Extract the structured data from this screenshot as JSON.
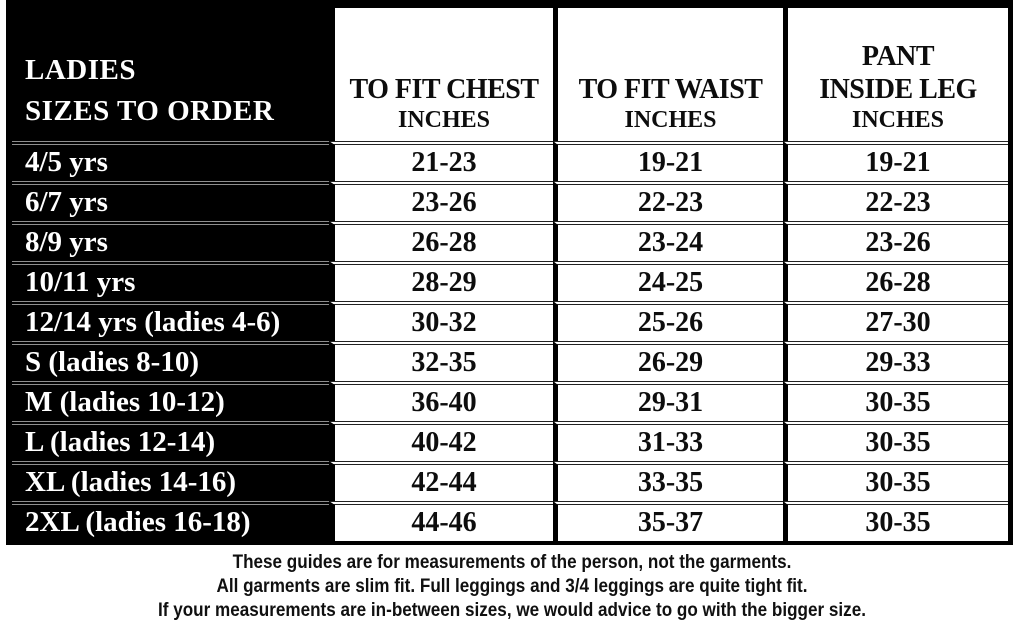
{
  "chart_data": {
    "type": "table",
    "title": "LADIES SIZES TO ORDER",
    "columns": [
      "LADIES SIZES TO ORDER",
      "TO FIT CHEST INCHES",
      "TO FIT WAIST INCHES",
      "PANT INSIDE LEG INCHES"
    ],
    "rows": [
      {
        "size": "4/5 yrs",
        "chest": "21-23",
        "waist": "19-21",
        "inside_leg": "19-21"
      },
      {
        "size": "6/7 yrs",
        "chest": "23-26",
        "waist": "22-23",
        "inside_leg": "22-23"
      },
      {
        "size": "8/9 yrs",
        "chest": "26-28",
        "waist": "23-24",
        "inside_leg": "23-26"
      },
      {
        "size": "10/11 yrs",
        "chest": "28-29",
        "waist": "24-25",
        "inside_leg": "26-28"
      },
      {
        "size": "12/14 yrs (ladies 4-6)",
        "chest": "30-32",
        "waist": "25-26",
        "inside_leg": "27-30"
      },
      {
        "size": "S (ladies 8-10)",
        "chest": "32-35",
        "waist": "26-29",
        "inside_leg": "29-33"
      },
      {
        "size": "M (ladies 10-12)",
        "chest": "36-40",
        "waist": "29-31",
        "inside_leg": "30-35"
      },
      {
        "size": "L (ladies 12-14)",
        "chest": "40-42",
        "waist": "31-33",
        "inside_leg": "30-35"
      },
      {
        "size": "XL (ladies 14-16)",
        "chest": "42-44",
        "waist": "33-35",
        "inside_leg": "30-35"
      },
      {
        "size": "2XL (ladies 16-18)",
        "chest": "44-46",
        "waist": "35-37",
        "inside_leg": "30-35"
      }
    ],
    "notes": [
      "These guides are for measurements of the person, not the garments.",
      "All garments are slim fit. Full leggings and 3/4 leggings are quite tight fit.",
      "If your measurements are in-between sizes, we would advice to go with the bigger size."
    ]
  },
  "header": {
    "size_col": {
      "line1": "LADIES",
      "line2": "SIZES TO ORDER"
    },
    "chest_col": {
      "title": "TO FIT CHEST",
      "unit": "INCHES"
    },
    "waist_col": {
      "title": "TO FIT WAIST",
      "unit": "INCHES"
    },
    "leg_col": {
      "line1": "PANT",
      "line2": "INSIDE LEG",
      "unit": "INCHES"
    }
  },
  "colors": {
    "table_black": "#000000",
    "paper_white": "#ffffff",
    "text_black": "#0d0d0d"
  }
}
